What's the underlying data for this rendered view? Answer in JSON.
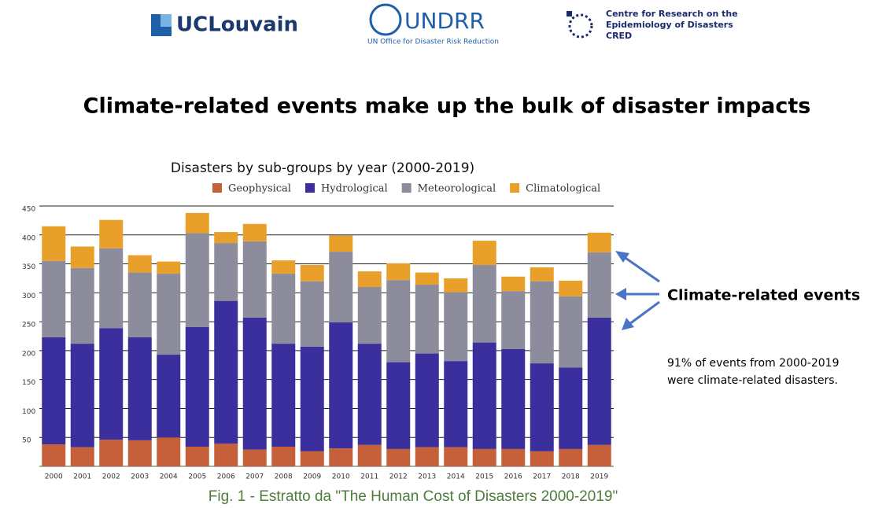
{
  "header": {
    "logos": [
      {
        "lines": [
          "UCLouvain"
        ]
      },
      {
        "lines": [
          "UNDRR",
          "UN Office for Disaster Risk Reduction"
        ]
      },
      {
        "lines": [
          "Centre for Research on the",
          "Epidemiology of Disasters",
          "CRED"
        ]
      }
    ]
  },
  "slide_title": "Climate-related events make up the bulk of disaster impacts",
  "chart_data": {
    "type": "stacked_bar",
    "title": "Disasters by sub-groups by year (2000-2019)",
    "categories": [
      "2000",
      "2001",
      "2002",
      "2003",
      "2004",
      "2005",
      "2006",
      "2007",
      "2008",
      "2009",
      "2010",
      "2011",
      "2012",
      "2013",
      "2014",
      "2015",
      "2016",
      "2017",
      "2018",
      "2019"
    ],
    "series": [
      {
        "name": "Geophysical",
        "color": "#c5603a",
        "values": [
          38,
          33,
          46,
          45,
          50,
          34,
          39,
          29,
          34,
          26,
          31,
          37,
          30,
          33,
          33,
          30,
          30,
          26,
          30,
          37
        ]
      },
      {
        "name": "Hydrological",
        "color": "#3a2f9c",
        "values": [
          185,
          179,
          193,
          178,
          143,
          207,
          247,
          228,
          178,
          181,
          218,
          175,
          150,
          162,
          149,
          184,
          173,
          152,
          141,
          220
        ]
      },
      {
        "name": "Meteorological",
        "color": "#8d8c9c",
        "values": [
          132,
          131,
          138,
          112,
          140,
          162,
          100,
          132,
          121,
          113,
          122,
          98,
          142,
          119,
          119,
          134,
          100,
          142,
          123,
          113
        ]
      },
      {
        "name": "Climatological",
        "color": "#e8a02a",
        "values": [
          60,
          37,
          49,
          30,
          21,
          35,
          19,
          30,
          23,
          28,
          28,
          27,
          29,
          21,
          24,
          42,
          25,
          24,
          27,
          34
        ]
      }
    ],
    "ylim": [
      0,
      450
    ],
    "yticks": [
      50,
      100,
      150,
      200,
      250,
      300,
      350,
      400,
      450
    ],
    "grid": true,
    "legend": "top"
  },
  "annotations": {
    "callout": "Climate-related events",
    "note": [
      "91% of events from 2000-2019",
      "were climate-related disasters."
    ]
  },
  "caption": "Fig. 1 - Estratto da  \"The Human Cost of Disasters 2000-2019\""
}
